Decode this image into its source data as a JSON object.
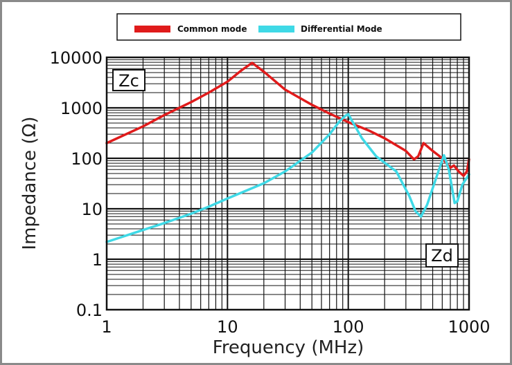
{
  "chart_data": {
    "type": "line",
    "title_fragment": "",
    "xlabel": "Frequency (MHz)",
    "ylabel": "Impedance (Ω)",
    "xscale": "log",
    "yscale": "log",
    "xlim": [
      1,
      1000
    ],
    "ylim": [
      0.1,
      10000
    ],
    "x_ticks": [
      1,
      10,
      100,
      1000
    ],
    "x_tick_labels": [
      "1",
      "10",
      "100",
      "1000"
    ],
    "y_ticks": [
      0.1,
      1,
      10,
      100,
      1000,
      10000
    ],
    "y_tick_labels": [
      "0.1",
      "1",
      "10",
      "100",
      "1000",
      "10000"
    ],
    "grid": true,
    "legend_position": "top",
    "annotations": {
      "zc": "Zc",
      "zd": "Zd"
    },
    "series": [
      {
        "name": "Common mode",
        "color": "#e01b1b",
        "points": [
          [
            1,
            200
          ],
          [
            2,
            430
          ],
          [
            3,
            720
          ],
          [
            5,
            1300
          ],
          [
            7,
            2000
          ],
          [
            10,
            3300
          ],
          [
            13,
            5500
          ],
          [
            16,
            7800
          ],
          [
            20,
            5200
          ],
          [
            30,
            2300
          ],
          [
            50,
            1150
          ],
          [
            70,
            770
          ],
          [
            100,
            520
          ],
          [
            150,
            350
          ],
          [
            200,
            250
          ],
          [
            300,
            140
          ],
          [
            350,
            95
          ],
          [
            380,
            110
          ],
          [
            420,
            200
          ],
          [
            500,
            140
          ],
          [
            600,
            100
          ],
          [
            700,
            65
          ],
          [
            750,
            72
          ],
          [
            820,
            55
          ],
          [
            900,
            45
          ],
          [
            960,
            55
          ],
          [
            1000,
            95
          ]
        ]
      },
      {
        "name": "Differential Mode",
        "color": "#3fd9e6",
        "points": [
          [
            1,
            2.2
          ],
          [
            2,
            3.8
          ],
          [
            3,
            5.2
          ],
          [
            5,
            8
          ],
          [
            7,
            11
          ],
          [
            10,
            16
          ],
          [
            20,
            32
          ],
          [
            30,
            55
          ],
          [
            50,
            130
          ],
          [
            70,
            300
          ],
          [
            85,
            550
          ],
          [
            95,
            700
          ],
          [
            100,
            750
          ],
          [
            110,
            500
          ],
          [
            130,
            250
          ],
          [
            170,
            110
          ],
          [
            250,
            55
          ],
          [
            320,
            18
          ],
          [
            360,
            9
          ],
          [
            400,
            7
          ],
          [
            450,
            12
          ],
          [
            550,
            50
          ],
          [
            620,
            115
          ],
          [
            680,
            60
          ],
          [
            760,
            13
          ],
          [
            800,
            14
          ],
          [
            880,
            30
          ],
          [
            1000,
            48
          ]
        ]
      }
    ]
  }
}
